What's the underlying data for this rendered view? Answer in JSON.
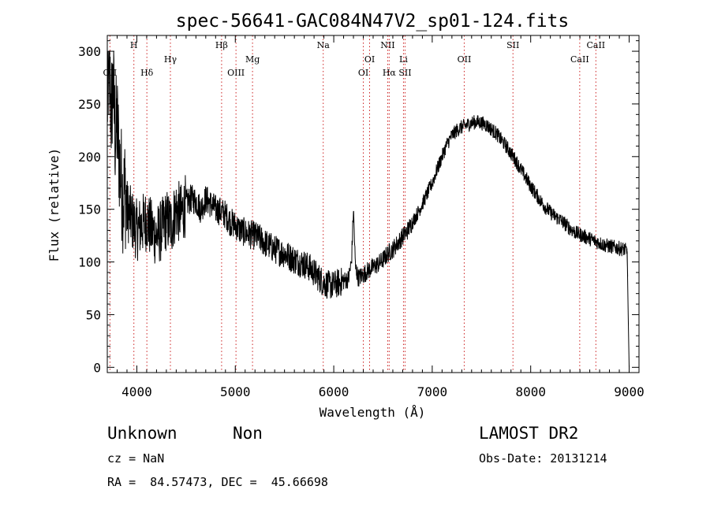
{
  "chart_data": {
    "type": "line",
    "title": "spec-56641-GAC084N47V2_sp01-124.fits",
    "xlabel": "Wavelength (Å)",
    "ylabel": "Flux (relative)",
    "xlim": [
      3700,
      9100
    ],
    "ylim": [
      -5,
      315
    ],
    "xticks": [
      4000,
      5000,
      6000,
      7000,
      8000,
      9000
    ],
    "yticks": [
      0,
      50,
      100,
      150,
      200,
      250,
      300
    ],
    "grid": false,
    "line_color": "#000000",
    "marker_line_color": "#cc2222",
    "lines": [
      {
        "label": "OII",
        "wavelength": 3727,
        "row": 2
      },
      {
        "label": "H",
        "wavelength": 3970,
        "row": 0
      },
      {
        "label": "Hδ",
        "wavelength": 4102,
        "row": 2
      },
      {
        "label": "Hγ",
        "wavelength": 4341,
        "row": 1
      },
      {
        "label": "Hβ",
        "wavelength": 4861,
        "row": 0
      },
      {
        "label": "OIII",
        "wavelength": 5007,
        "row": 2
      },
      {
        "label": "Mg",
        "wavelength": 5175,
        "row": 1
      },
      {
        "label": "Na",
        "wavelength": 5893,
        "row": 0
      },
      {
        "label": "OI",
        "wavelength": 6300,
        "row": 2
      },
      {
        "label": "OI",
        "wavelength": 6364,
        "row": 1
      },
      {
        "label": "NII",
        "wavelength": 6548,
        "row": 0
      },
      {
        "label": "Hα",
        "wavelength": 6563,
        "row": 2
      },
      {
        "label": "Li",
        "wavelength": 6708,
        "row": 1
      },
      {
        "label": "SII",
        "wavelength": 6724,
        "row": 2
      },
      {
        "label": "OII",
        "wavelength": 7325,
        "row": 1
      },
      {
        "label": "SII",
        "wavelength": 7820,
        "row": 0
      },
      {
        "label": "CaII",
        "wavelength": 8498,
        "row": 1
      },
      {
        "label": "CaII",
        "wavelength": 8662,
        "row": 0
      }
    ],
    "series": [
      {
        "x": [
          3700,
          3720,
          3740,
          3760,
          3780,
          3800,
          3820,
          3840,
          3860,
          3880,
          3900,
          3950,
          4000,
          4050,
          4100,
          4150,
          4200,
          4250,
          4300,
          4350,
          4400,
          4450,
          4500,
          4550,
          4600,
          4650,
          4700,
          4750,
          4800,
          4850,
          4900,
          4950,
          5000,
          5050,
          5100,
          5150,
          5200,
          5250,
          5300,
          5350,
          5400,
          5450,
          5500,
          5550,
          5600,
          5650,
          5700,
          5750,
          5800,
          5850,
          5900,
          5950,
          6000,
          6050,
          6100,
          6150,
          6180,
          6200,
          6220,
          6250,
          6300,
          6350,
          6400,
          6450,
          6500,
          6550,
          6600,
          6650,
          6700,
          6750,
          6800,
          6850,
          6900,
          6950,
          7000,
          7050,
          7100,
          7150,
          7200,
          7250,
          7300,
          7350,
          7400,
          7450,
          7500,
          7550,
          7600,
          7650,
          7700,
          7750,
          7800,
          7850,
          7900,
          7950,
          8000,
          8050,
          8100,
          8150,
          8200,
          8250,
          8300,
          8350,
          8400,
          8450,
          8500,
          8550,
          8600,
          8650,
          8700,
          8750,
          8800,
          8850,
          8900,
          8950,
          8980,
          8990,
          9000
        ],
        "y": [
          250,
          285,
          240,
          270,
          220,
          230,
          200,
          180,
          160,
          170,
          150,
          140,
          130,
          135,
          140,
          130,
          125,
          130,
          140,
          135,
          150,
          145,
          155,
          160,
          158,
          150,
          160,
          155,
          150,
          148,
          145,
          138,
          135,
          130,
          128,
          126,
          125,
          122,
          118,
          115,
          112,
          110,
          108,
          105,
          102,
          100,
          98,
          95,
          90,
          85,
          80,
          78,
          78,
          80,
          82,
          84,
          100,
          150,
          95,
          85,
          88,
          92,
          95,
          98,
          102,
          108,
          112,
          118,
          124,
          130,
          138,
          146,
          155,
          165,
          175,
          188,
          200,
          212,
          220,
          225,
          228,
          230,
          232,
          233,
          232,
          230,
          226,
          222,
          216,
          210,
          203,
          196,
          188,
          180,
          172,
          165,
          158,
          152,
          147,
          143,
          140,
          136,
          132,
          128,
          126,
          124,
          122,
          120,
          118,
          116,
          115,
          114,
          113,
          112,
          110,
          50,
          0
        ]
      }
    ]
  },
  "footer": {
    "class_label": "Unknown",
    "subclass_label": "Non",
    "survey": "LAMOST DR2",
    "cz": "cz = NaN",
    "obs_date": "Obs-Date: 20131214",
    "radec": "RA =  84.57473, DEC =  45.66698"
  }
}
